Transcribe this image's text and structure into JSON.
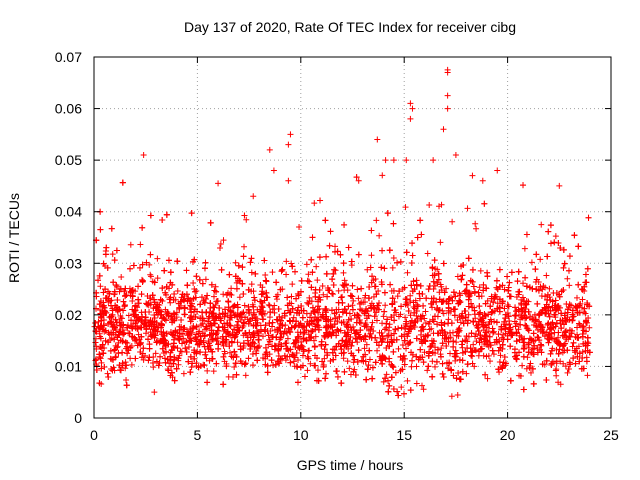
{
  "chart_data": {
    "type": "scatter",
    "title": "Day 137 of 2020, Rate Of TEC Index for receiver cibg",
    "xlabel": "GPS time / hours",
    "ylabel": "ROTI / TECUs",
    "xlim": [
      0,
      25
    ],
    "ylim": [
      0,
      0.07
    ],
    "x_ticks": [
      "0",
      "5",
      "10",
      "15",
      "20",
      "25"
    ],
    "y_ticks": [
      "0",
      "0.01",
      "0.02",
      "0.03",
      "0.04",
      "0.05",
      "0.06",
      "0.07"
    ],
    "grid": true,
    "marker": "plus",
    "color": "#ff0000",
    "data_extent_hours": [
      0,
      24
    ],
    "typical_band": [
      0.01,
      0.025
    ],
    "outliers": [
      {
        "x": 2.4,
        "y": 0.051
      },
      {
        "x": 9.5,
        "y": 0.055
      },
      {
        "x": 9.4,
        "y": 0.053
      },
      {
        "x": 8.5,
        "y": 0.052
      },
      {
        "x": 15.3,
        "y": 0.061
      },
      {
        "x": 15.4,
        "y": 0.06
      },
      {
        "x": 15.3,
        "y": 0.058
      },
      {
        "x": 17.1,
        "y": 0.0675
      },
      {
        "x": 17.1,
        "y": 0.067
      },
      {
        "x": 17.1,
        "y": 0.0625
      },
      {
        "x": 17.1,
        "y": 0.06
      },
      {
        "x": 16.9,
        "y": 0.056
      },
      {
        "x": 13.7,
        "y": 0.054
      },
      {
        "x": 14.1,
        "y": 0.05
      },
      {
        "x": 14.5,
        "y": 0.05
      },
      {
        "x": 15.1,
        "y": 0.05
      },
      {
        "x": 16.4,
        "y": 0.05
      },
      {
        "x": 17.5,
        "y": 0.051
      },
      {
        "x": 18.8,
        "y": 0.046
      },
      {
        "x": 19.5,
        "y": 0.048
      },
      {
        "x": 22.5,
        "y": 0.045
      },
      {
        "x": 6.0,
        "y": 0.0455
      },
      {
        "x": 7.7,
        "y": 0.043
      },
      {
        "x": 12.8,
        "y": 0.046
      },
      {
        "x": 9.4,
        "y": 0.046
      },
      {
        "x": 8.7,
        "y": 0.048
      },
      {
        "x": 18.3,
        "y": 0.047
      }
    ]
  }
}
